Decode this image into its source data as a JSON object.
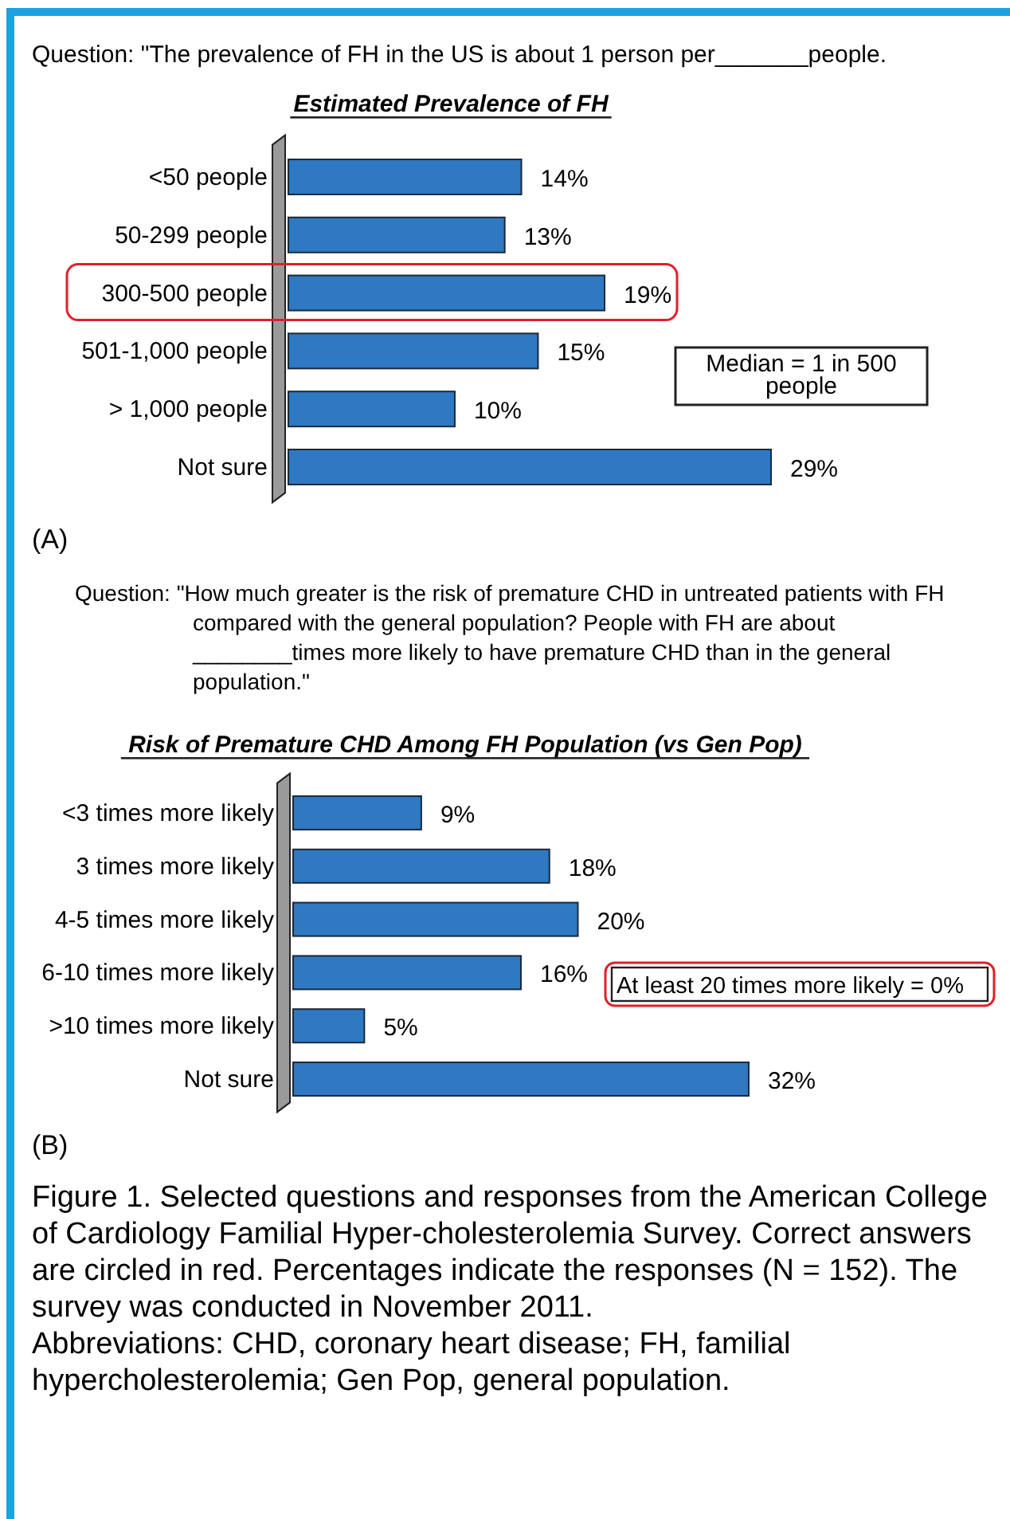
{
  "chart_data": [
    {
      "type": "bar",
      "orientation": "horizontal",
      "title": "Estimated Prevalence of FH",
      "categories": [
        "<50 people",
        "50-299 people",
        "300-500 people",
        "501-1,000 people",
        "> 1,000 people",
        "Not sure"
      ],
      "values": [
        14,
        13,
        19,
        15,
        10,
        29
      ],
      "value_labels": [
        "14%",
        "13%",
        "19%",
        "15%",
        "10%",
        "29%"
      ],
      "color": "#2f78c2",
      "annotations": [
        "Question: \"The prevalence of FH in the US is about 1 person per_______people.",
        "(A)",
        "Median = 1 in 500 people"
      ]
    },
    {
      "type": "bar",
      "orientation": "horizontal",
      "title": "Risk of Premature CHD Among FH Population (vs Gen Pop)",
      "categories": [
        "<3 times more likely",
        "3 times more likely",
        "4-5 times more likely",
        "6-10 times more likely",
        ">10 times more likely",
        "Not sure"
      ],
      "values": [
        9,
        18,
        20,
        16,
        5,
        32
      ],
      "value_labels": [
        "9%",
        "18%",
        "20%",
        "16%",
        "5%",
        "32%"
      ],
      "color": "#2f78c2",
      "annotations": [
        "Question: \"How much greater is the risk of premature CHD in untreated patients with FH compared with the general population? People with FH are about ________times more likely to have premature CHD than in the general population.\"",
        "(B)",
        "At least 20 times more likely = 0%",
        "Figure 1. Selected questions and responses from the American College of Cardiology Familial Hyper-cholesterolemia Survey. Correct answers are circled in red. Percentages indicate the responses (N = 152). The survey was conducted in November 2011.",
        "Abbreviations: CHD, coronary heart disease; FH, familial hypercholesterolemia; Gen Pop, general population."
      ]
    }
  ]
}
